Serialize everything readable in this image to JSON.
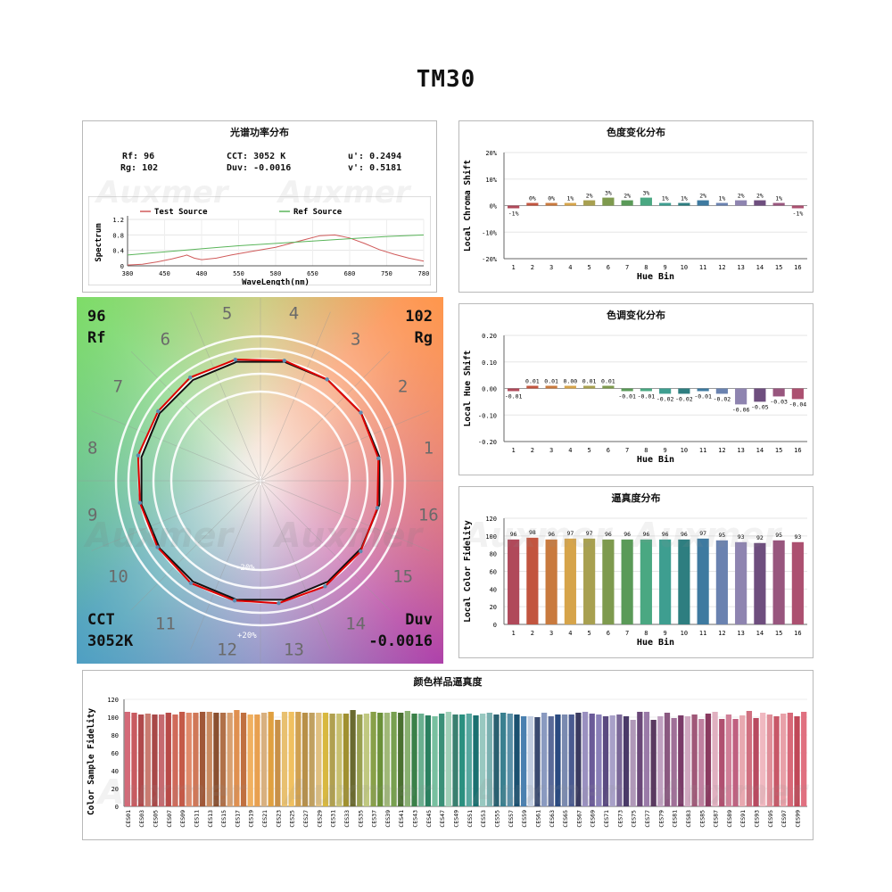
{
  "title": "TM30",
  "watermark": "Auxmer",
  "spd": {
    "title": "光谱功率分布",
    "params": {
      "rf": "Rf: 96",
      "rg": "Rg: 102",
      "cct": "CCT: 3052 K",
      "duv": "Duv: -0.0016",
      "u": "u': 0.2494",
      "v": "v': 0.5181"
    },
    "chart_data": {
      "type": "line",
      "xlabel": "WaveLength(nm)",
      "ylabel": "Spectrum",
      "xlim": [
        380,
        780
      ],
      "ylim": [
        0,
        1.2
      ],
      "x_ticks": [
        "380",
        "450",
        "480",
        "550",
        "580",
        "650",
        "680",
        "750",
        "780"
      ],
      "y_ticks": [
        "0",
        "0.4",
        "0.8",
        "1.2"
      ],
      "legend": [
        "Test Source",
        "Ref Source"
      ],
      "series": [
        {
          "name": "Test Source",
          "color": "#d05a5a",
          "x": [
            380,
            400,
            420,
            440,
            455,
            460,
            470,
            480,
            500,
            520,
            550,
            580,
            600,
            620,
            640,
            660,
            680,
            700,
            720,
            740,
            760,
            780
          ],
          "y": [
            0.02,
            0.04,
            0.1,
            0.18,
            0.25,
            0.28,
            0.2,
            0.16,
            0.2,
            0.28,
            0.38,
            0.48,
            0.58,
            0.68,
            0.78,
            0.8,
            0.72,
            0.58,
            0.42,
            0.3,
            0.2,
            0.12
          ]
        },
        {
          "name": "Ref Source",
          "color": "#5ab55a",
          "x": [
            380,
            430,
            480,
            530,
            580,
            630,
            680,
            730,
            780
          ],
          "y": [
            0.28,
            0.36,
            0.44,
            0.52,
            0.58,
            0.64,
            0.7,
            0.76,
            0.8
          ]
        }
      ]
    }
  },
  "chroma": {
    "title": "色度变化分布",
    "chart_data": {
      "type": "bar",
      "xlabel": "Hue Bin",
      "ylabel": "Local Chroma Shift",
      "ylim": [
        -20,
        20
      ],
      "y_ticks": [
        "20%",
        "10%",
        "0%",
        "-10%",
        "-20%"
      ],
      "categories": [
        "1",
        "2",
        "3",
        "4",
        "5",
        "6",
        "7",
        "8",
        "9",
        "10",
        "11",
        "12",
        "13",
        "14",
        "15",
        "16"
      ],
      "values": [
        -1,
        0,
        0,
        1,
        2,
        3,
        2,
        3,
        1,
        1,
        2,
        1,
        2,
        2,
        1,
        -1
      ],
      "labels": [
        "-1%",
        "0%",
        "0%",
        "1%",
        "2%",
        "3%",
        "2%",
        "3%",
        "1%",
        "1%",
        "2%",
        "1%",
        "2%",
        "2%",
        "1%",
        "-1%"
      ]
    }
  },
  "hue": {
    "title": "色调变化分布",
    "chart_data": {
      "type": "bar",
      "xlabel": "Hue Bin",
      "ylabel": "Local Hue Shift",
      "ylim": [
        -0.2,
        0.2
      ],
      "y_ticks": [
        "0.20",
        "0.10",
        "0.00",
        "-0.10",
        "-0.20"
      ],
      "categories": [
        "1",
        "2",
        "3",
        "4",
        "5",
        "6",
        "7",
        "8",
        "9",
        "10",
        "11",
        "12",
        "13",
        "14",
        "15",
        "16"
      ],
      "values": [
        -0.01,
        0.01,
        0.01,
        0.0,
        0.01,
        0.01,
        -0.01,
        -0.01,
        -0.02,
        -0.02,
        -0.01,
        -0.02,
        -0.06,
        -0.05,
        -0.03,
        -0.04
      ],
      "labels": [
        "-0.01",
        "0.01",
        "0.01",
        "0.00",
        "0.01",
        "0.01",
        "-0.01",
        "-0.01",
        "-0.02",
        "-0.02",
        "-0.01",
        "-0.02",
        "-0.06",
        "-0.05",
        "-0.03",
        "-0.04"
      ]
    }
  },
  "fidelity": {
    "title": "逼真度分布",
    "chart_data": {
      "type": "bar",
      "xlabel": "Hue Bin",
      "ylabel": "Local Color Fidelity",
      "ylim": [
        0,
        120
      ],
      "y_ticks": [
        "120",
        "100",
        "80",
        "60",
        "40",
        "20",
        "0"
      ],
      "categories": [
        "1",
        "2",
        "3",
        "4",
        "5",
        "6",
        "7",
        "8",
        "9",
        "10",
        "11",
        "12",
        "13",
        "14",
        "15",
        "16"
      ],
      "values": [
        96,
        98,
        96,
        97,
        97,
        96,
        96,
        96,
        96,
        96,
        97,
        95,
        93,
        92,
        95,
        93
      ]
    }
  },
  "colors16": [
    "#b0495a",
    "#c2553f",
    "#c97a3e",
    "#d6a44a",
    "#a8a050",
    "#7e9a4e",
    "#5a9a58",
    "#4aa882",
    "#3e9e90",
    "#2e7e80",
    "#3e7aa0",
    "#6a82b0",
    "#8e84b0",
    "#6e4e7e",
    "#98567e",
    "#ac5070"
  ],
  "vector": {
    "rf_value": "96",
    "rf_label": "Rf",
    "rg_value": "102",
    "rg_label": "Rg",
    "cct_label": "CCT",
    "cct_value": "3052K",
    "duv_label": "Duv",
    "duv_value": "-0.0016",
    "ring_minus": "-20%",
    "ring_plus": "+20%",
    "bins": [
      "1",
      "2",
      "3",
      "4",
      "5",
      "6",
      "7",
      "8",
      "9",
      "10",
      "11",
      "12",
      "13",
      "14",
      "15",
      "16"
    ]
  },
  "samples": {
    "title": "颜色样品逼真度",
    "chart_data": {
      "type": "bar",
      "ylabel": "Color Sample Fidelity",
      "ylim": [
        0,
        120
      ],
      "y_ticks": [
        "120",
        "100",
        "80",
        "60",
        "40",
        "20",
        "0"
      ],
      "tick_labels": [
        "CES01",
        "CES03",
        "CES05",
        "CES07",
        "CES09",
        "CES11",
        "CES13",
        "CES15",
        "CES17",
        "CES19",
        "CES21",
        "CES23",
        "CES25",
        "CES27",
        "CES29",
        "CES31",
        "CES33",
        "CES35",
        "CES37",
        "CES39",
        "CES41",
        "CES43",
        "CES45",
        "CES47",
        "CES49",
        "CES51",
        "CES53",
        "CES55",
        "CES57",
        "CES59",
        "CES61",
        "CES63",
        "CES65",
        "CES67",
        "CES69",
        "CES71",
        "CES73",
        "CES75",
        "CES77",
        "CES79",
        "CES81",
        "CES83",
        "CES85",
        "CES87",
        "CES89",
        "CES91",
        "CES93",
        "CES95",
        "CES97",
        "CES99"
      ],
      "values": [
        106,
        105,
        103,
        104,
        103,
        103,
        105,
        103,
        106,
        105,
        105,
        106,
        106,
        105,
        105,
        105,
        108,
        105,
        103,
        103,
        105,
        106,
        97,
        106,
        106,
        106,
        105,
        105,
        105,
        105,
        104,
        104,
        104,
        108,
        103,
        104,
        106,
        105,
        105,
        106,
        105,
        107,
        104,
        104,
        102,
        101,
        104,
        106,
        103,
        103,
        104,
        102,
        104,
        105,
        103,
        105,
        104,
        103,
        101,
        101,
        100,
        105,
        101,
        103,
        103,
        103,
        105,
        106,
        104,
        103,
        101,
        102,
        103,
        101,
        97,
        106,
        106,
        97,
        101,
        105,
        99,
        102,
        101,
        103,
        98,
        104,
        106,
        98,
        103,
        98,
        102,
        107,
        99,
        105,
        103,
        101,
        104,
        105,
        101,
        106
      ],
      "colors": [
        "#d46a78",
        "#c85a60",
        "#b04a4c",
        "#c97b70",
        "#a84848",
        "#c66a70",
        "#b84a48",
        "#d06a5a",
        "#c45a48",
        "#e08a6a",
        "#d07858",
        "#a05838",
        "#c98a60",
        "#8a5030",
        "#b07048",
        "#d8a070",
        "#e09050",
        "#c07040",
        "#f0b060",
        "#e8a050",
        "#d8b080",
        "#e0a040",
        "#c89048",
        "#e8c070",
        "#f0c060",
        "#d0a050",
        "#b89048",
        "#c0a060",
        "#e0c080",
        "#d8b840",
        "#b0a050",
        "#c8c070",
        "#a09030",
        "#6a6a30",
        "#98a050",
        "#c0c880",
        "#88a048",
        "#6a9038",
        "#a0b878",
        "#78a050",
        "#4a7030",
        "#88b070",
        "#3a8048",
        "#6ab090",
        "#2a8060",
        "#78c0a0",
        "#3a9078",
        "#a0d0b8",
        "#3a8070",
        "#2a9080",
        "#58a8a0",
        "#1a7070",
        "#98c8c0",
        "#7ab0b0",
        "#2a6070",
        "#3a8090",
        "#5a90a8",
        "#1a5070",
        "#4a80b0",
        "#c0cce0",
        "#3a4a70",
        "#8a9ac0",
        "#5a6a98",
        "#2a4a80",
        "#7a8ab0",
        "#4a5a90",
        "#3a3a60",
        "#9a90c0",
        "#6a5a98",
        "#8a80b8",
        "#5a4a80",
        "#a8a0c8",
        "#7a6898",
        "#4a3a68",
        "#b098b8",
        "#6a4878",
        "#9a7aa8",
        "#5a3a60",
        "#c0a0c0",
        "#8a5880",
        "#a07098",
        "#7a3a68",
        "#d0a8c0",
        "#a05878",
        "#c080a0",
        "#8a3a60",
        "#e0b0c0",
        "#b05070",
        "#d08098",
        "#c06080",
        "#e8a8b0",
        "#d07080",
        "#b84a60",
        "#f0b8c0",
        "#e0909a",
        "#c85868",
        "#e8a0a8",
        "#d86878",
        "#c04858",
        "#e07080"
      ]
    }
  }
}
